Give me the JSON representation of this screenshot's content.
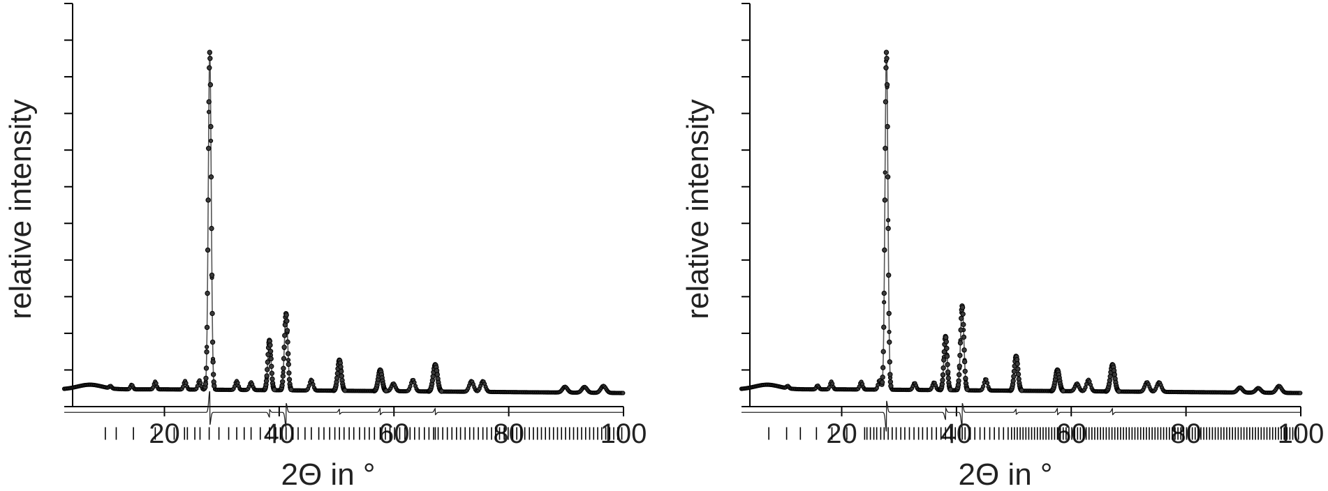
{
  "chart_data": [
    {
      "type": "line",
      "title": "",
      "xlabel": "2Θ in °",
      "ylabel": "relative intensity",
      "xlim": [
        4,
        100
      ],
      "ylim": [
        0,
        105
      ],
      "xticks": [
        20,
        40,
        60,
        80,
        100
      ],
      "y_ticks_unlabeled": true,
      "background": 4.5,
      "difference_offset": -1.5,
      "reflection_ticks_row": -7,
      "peaks": [
        {
          "x": 10.6,
          "height": 0.6
        },
        {
          "x": 14.3,
          "height": 1.2
        },
        {
          "x": 18.4,
          "height": 2.0
        },
        {
          "x": 23.6,
          "height": 2.2
        },
        {
          "x": 26.1,
          "height": 2.4
        },
        {
          "x": 27.9,
          "height": 88.0
        },
        {
          "x": 32.6,
          "height": 2.3
        },
        {
          "x": 35.1,
          "height": 2.0
        },
        {
          "x": 38.3,
          "height": 13.0
        },
        {
          "x": 41.2,
          "height": 20.0
        },
        {
          "x": 45.6,
          "height": 2.8
        },
        {
          "x": 50.5,
          "height": 8.0
        },
        {
          "x": 57.6,
          "height": 5.5
        },
        {
          "x": 59.9,
          "height": 2.0
        },
        {
          "x": 63.3,
          "height": 3.0
        },
        {
          "x": 67.2,
          "height": 7.0
        },
        {
          "x": 73.5,
          "height": 2.8
        },
        {
          "x": 75.5,
          "height": 2.8
        },
        {
          "x": 89.8,
          "height": 1.5
        },
        {
          "x": 93.2,
          "height": 1.5
        },
        {
          "x": 96.5,
          "height": 1.8
        }
      ],
      "difference_features": [
        {
          "x": 27.9,
          "amplitude": 5.5
        },
        {
          "x": 38.3,
          "amplitude": -1.2
        },
        {
          "x": 41.2,
          "amplitude": -4.0
        },
        {
          "x": 50.5,
          "amplitude": 0.8
        },
        {
          "x": 57.6,
          "amplitude": 1.0
        },
        {
          "x": 67.2,
          "amplitude": 1.0
        }
      ],
      "reflection_positions": [
        9.7,
        11.6,
        14.6,
        18.4,
        21.7,
        23.5,
        24.0,
        25.3,
        26.2,
        27.8,
        29.5,
        31.2,
        32.6,
        33.9,
        35.1,
        36.7,
        38.3,
        39.4,
        40.2,
        41.2,
        42.4,
        43.3,
        44.5,
        45.6,
        46.9,
        47.8,
        48.8,
        49.7,
        50.5,
        51.3,
        52.2,
        53.0,
        54.0,
        54.9,
        55.7,
        56.6,
        57.6,
        58.5,
        59.3,
        60.1,
        61.0,
        61.9,
        62.8,
        63.6,
        64.4,
        65.3,
        66.1,
        66.9,
        67.2,
        67.7,
        68.5,
        69.3,
        70.1,
        70.9,
        71.6,
        72.4,
        73.2,
        73.9,
        74.7,
        75.5,
        76.2,
        77.0,
        77.7,
        78.4,
        79.2,
        79.9,
        80.7,
        81.4,
        82.1,
        82.8,
        83.6,
        84.3,
        85.0,
        85.7,
        86.4,
        87.1,
        87.8,
        88.5,
        89.2,
        89.9,
        90.6,
        91.3,
        92.0,
        92.7,
        93.4,
        94.1,
        94.8,
        95.5,
        96.2,
        96.9,
        97.6,
        98.3,
        99.0,
        99.7
      ]
    },
    {
      "type": "line",
      "title": "",
      "xlabel": "2Θ in °",
      "ylabel": "relative intensity",
      "xlim": [
        4,
        100
      ],
      "ylim": [
        0,
        105
      ],
      "xticks": [
        20,
        40,
        60,
        80,
        100
      ],
      "y_ticks_unlabeled": true,
      "background": 4.5,
      "difference_offset": -1.5,
      "reflection_ticks_row": -7,
      "peaks": [
        {
          "x": 10.6,
          "height": 0.6
        },
        {
          "x": 15.8,
          "height": 1.0
        },
        {
          "x": 18.2,
          "height": 2.0
        },
        {
          "x": 23.4,
          "height": 2.0
        },
        {
          "x": 26.6,
          "height": 2.5
        },
        {
          "x": 27.8,
          "height": 88.0
        },
        {
          "x": 32.7,
          "height": 1.8
        },
        {
          "x": 36.1,
          "height": 2.0
        },
        {
          "x": 38.1,
          "height": 14.0
        },
        {
          "x": 41.0,
          "height": 22.0
        },
        {
          "x": 45.1,
          "height": 3.0
        },
        {
          "x": 50.4,
          "height": 9.0
        },
        {
          "x": 57.6,
          "height": 5.5
        },
        {
          "x": 61.0,
          "height": 2.0
        },
        {
          "x": 63.0,
          "height": 3.0
        },
        {
          "x": 67.2,
          "height": 7.0
        },
        {
          "x": 73.2,
          "height": 2.5
        },
        {
          "x": 75.3,
          "height": 2.5
        },
        {
          "x": 89.4,
          "height": 1.3
        },
        {
          "x": 92.6,
          "height": 1.2
        },
        {
          "x": 96.2,
          "height": 1.8
        }
      ],
      "difference_features": [
        {
          "x": 27.8,
          "amplitude": -5.0
        },
        {
          "x": 38.1,
          "amplitude": -1.8
        },
        {
          "x": 41.0,
          "amplitude": -4.0
        },
        {
          "x": 50.4,
          "amplitude": 0.8
        },
        {
          "x": 57.6,
          "amplitude": 1.0
        },
        {
          "x": 67.2,
          "amplitude": 1.0
        }
      ],
      "reflection_positions": [
        7.3,
        10.4,
        12.8,
        15.6,
        18.3,
        20.9,
        24.0,
        24.4,
        25.0,
        25.6,
        26.1,
        26.8,
        27.4,
        28.1,
        28.8,
        29.5,
        30.3,
        31.0,
        31.8,
        32.6,
        33.4,
        34.1,
        34.9,
        35.7,
        36.5,
        37.3,
        38.1,
        39.0,
        39.8,
        40.6,
        41.0,
        41.5,
        42.4,
        43.2,
        44.1,
        44.9,
        45.8,
        46.6,
        47.4,
        48.2,
        49.0,
        49.6,
        50.1,
        50.6,
        51.1,
        51.6,
        52.1,
        52.6,
        53.1,
        53.6,
        54.1,
        54.6,
        55.1,
        55.6,
        56.1,
        56.6,
        57.1,
        57.6,
        58.1,
        58.6,
        59.1,
        59.6,
        60.1,
        60.6,
        61.1,
        61.6,
        62.1,
        62.6,
        63.1,
        63.6,
        64.1,
        64.6,
        65.1,
        65.6,
        66.1,
        66.6,
        67.1,
        67.6,
        68.1,
        68.6,
        69.1,
        69.6,
        70.1,
        70.6,
        71.1,
        71.6,
        72.1,
        72.6,
        73.1,
        73.6,
        74.1,
        74.6,
        75.1,
        75.6,
        76.1,
        76.6,
        77.1,
        77.6,
        78.1,
        78.6,
        79.1,
        79.6,
        80.1,
        80.6,
        81.1,
        81.6,
        82.1,
        82.6,
        83.1,
        83.6,
        84.1,
        84.6,
        85.1,
        85.6,
        86.1,
        86.6,
        87.1,
        87.6,
        88.1,
        88.6,
        89.1,
        89.6,
        90.1,
        90.6,
        91.1,
        91.6,
        92.1,
        92.6,
        93.1,
        93.6,
        94.1,
        94.6,
        95.1,
        95.6,
        96.1,
        96.6,
        97.1,
        97.6,
        98.1,
        98.6,
        99.1,
        99.6
      ]
    }
  ]
}
